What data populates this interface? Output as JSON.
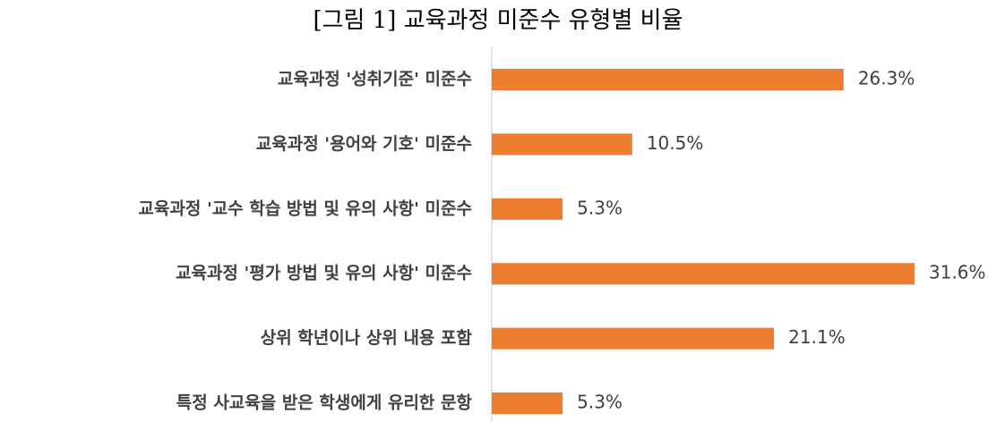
{
  "chart_data": {
    "type": "hbar",
    "title": "[그림 1] 교육과정 미준수 유형별 비율",
    "categories": [
      "교육과정 '성취기준' 미준수",
      "교육과정 '용어와 기호' 미준수",
      "교육과정 '교수 학습 방법 및 유의 사항' 미준수",
      "교육과정 '평가 방법 및 유의 사항' 미준수",
      "상위 학년이나 상위 내용 포함",
      "특정 사교육을 받은 학생에게 유리한 문항"
    ],
    "values": [
      26.3,
      10.5,
      5.3,
      31.6,
      21.1,
      5.3
    ],
    "value_labels": [
      "26.3%",
      "10.5%",
      "5.3%",
      "31.6%",
      "21.1%",
      "5.3%"
    ],
    "color": "#ed7d31"
  }
}
